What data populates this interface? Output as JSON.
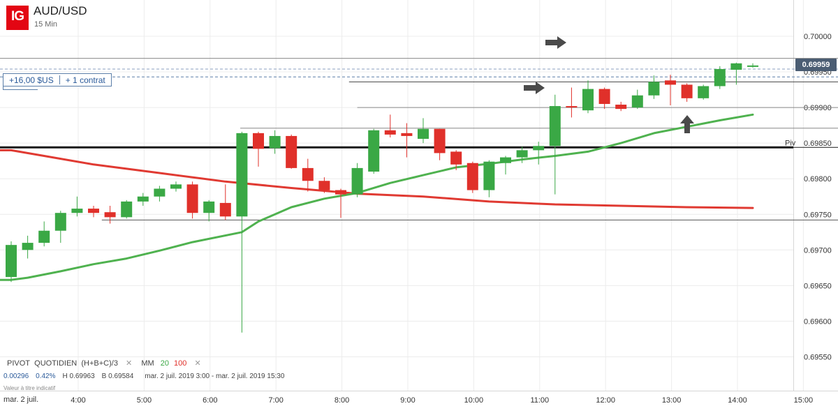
{
  "header": {
    "logo": "IG",
    "pair": "AUD/USD",
    "timeframe": "15 Min"
  },
  "position": {
    "pnl": "+16,00 $US",
    "size": "+ 1 contrat"
  },
  "current_price": "0.69959",
  "pivot_label": "Piv",
  "legend": {
    "pivot_name": "PIVOT",
    "pivot_period": "QUOTIDIEN",
    "pivot_formula": "(H+B+C)/3",
    "close_symbol": "✕",
    "ma_label": "MM",
    "ma_fast": "20",
    "ma_slow": "100"
  },
  "stats": {
    "change": "0.00296",
    "change_pct": "0.42%",
    "high": "H 0.69963",
    "low": "B 0.69584",
    "range": "mar. 2 juil. 2019 3:00 - mar. 2 juil. 2019 15:30"
  },
  "note": "Valeur à titre indicatif",
  "date_label": "mar. 2 juil.",
  "colors": {
    "up": "#3aa845",
    "down": "#e0302a",
    "ma_fast": "#4fb24f",
    "ma_slow": "#e03a32",
    "pivot": "#1a1a1a",
    "arrows": "#4a4a4a"
  },
  "icons": [
    "arrow-right-icon",
    "arrow-right-icon",
    "arrow-up-icon"
  ],
  "chart_data": {
    "type": "candlestick",
    "x_ticks": [
      "4:00",
      "5:00",
      "6:00",
      "7:00",
      "8:00",
      "9:00",
      "10:00",
      "11:00",
      "12:00",
      "13:00",
      "14:00",
      "15:00"
    ],
    "y_ticks": [
      "0.70000",
      "0.69950",
      "0.69900",
      "0.69850",
      "0.69800",
      "0.69750",
      "0.69700",
      "0.69650",
      "0.69600",
      "0.69550"
    ],
    "ylim": [
      0.69525,
      0.70025
    ],
    "time_start": "3:00",
    "interval_minutes": 15,
    "candles": [
      {
        "t": "3:00",
        "o": 0.69662,
        "h": 0.69712,
        "l": 0.69655,
        "c": 0.69707
      },
      {
        "t": "3:15",
        "o": 0.697,
        "h": 0.6972,
        "l": 0.69688,
        "c": 0.6971
      },
      {
        "t": "3:30",
        "o": 0.6971,
        "h": 0.6974,
        "l": 0.69705,
        "c": 0.69727
      },
      {
        "t": "3:45",
        "o": 0.69727,
        "h": 0.69755,
        "l": 0.6971,
        "c": 0.69752
      },
      {
        "t": "4:00",
        "o": 0.69752,
        "h": 0.69775,
        "l": 0.69747,
        "c": 0.69758
      },
      {
        "t": "4:15",
        "o": 0.69758,
        "h": 0.69762,
        "l": 0.69746,
        "c": 0.69752
      },
      {
        "t": "4:30",
        "o": 0.69753,
        "h": 0.69762,
        "l": 0.69737,
        "c": 0.69746
      },
      {
        "t": "4:45",
        "o": 0.69746,
        "h": 0.6977,
        "l": 0.69744,
        "c": 0.69768
      },
      {
        "t": "5:00",
        "o": 0.69768,
        "h": 0.6978,
        "l": 0.69762,
        "c": 0.69775
      },
      {
        "t": "5:15",
        "o": 0.69775,
        "h": 0.6979,
        "l": 0.69768,
        "c": 0.69786
      },
      {
        "t": "5:30",
        "o": 0.69786,
        "h": 0.69796,
        "l": 0.69782,
        "c": 0.69792
      },
      {
        "t": "5:45",
        "o": 0.69792,
        "h": 0.69796,
        "l": 0.69744,
        "c": 0.69752
      },
      {
        "t": "6:00",
        "o": 0.69752,
        "h": 0.6977,
        "l": 0.6974,
        "c": 0.69768
      },
      {
        "t": "6:15",
        "o": 0.69766,
        "h": 0.69792,
        "l": 0.69742,
        "c": 0.69747
      },
      {
        "t": "6:30",
        "o": 0.69747,
        "h": 0.69866,
        "l": 0.69584,
        "c": 0.69864
      },
      {
        "t": "6:45",
        "o": 0.69864,
        "h": 0.69866,
        "l": 0.69817,
        "c": 0.69842
      },
      {
        "t": "7:00",
        "o": 0.69843,
        "h": 0.69868,
        "l": 0.69835,
        "c": 0.6986
      },
      {
        "t": "7:15",
        "o": 0.6986,
        "h": 0.69862,
        "l": 0.69814,
        "c": 0.69815
      },
      {
        "t": "7:30",
        "o": 0.69815,
        "h": 0.69828,
        "l": 0.69782,
        "c": 0.69797
      },
      {
        "t": "7:45",
        "o": 0.69797,
        "h": 0.69802,
        "l": 0.6978,
        "c": 0.69784
      },
      {
        "t": "8:00",
        "o": 0.69784,
        "h": 0.69786,
        "l": 0.69745,
        "c": 0.69778
      },
      {
        "t": "8:15",
        "o": 0.69778,
        "h": 0.69822,
        "l": 0.69774,
        "c": 0.69815
      },
      {
        "t": "8:30",
        "o": 0.6981,
        "h": 0.6987,
        "l": 0.69807,
        "c": 0.69868
      },
      {
        "t": "8:45",
        "o": 0.69868,
        "h": 0.6989,
        "l": 0.69858,
        "c": 0.69862
      },
      {
        "t": "9:00",
        "o": 0.69864,
        "h": 0.69878,
        "l": 0.6983,
        "c": 0.6986
      },
      {
        "t": "9:15",
        "o": 0.69856,
        "h": 0.69885,
        "l": 0.6985,
        "c": 0.6987
      },
      {
        "t": "9:30",
        "o": 0.6987,
        "h": 0.6987,
        "l": 0.69826,
        "c": 0.69836
      },
      {
        "t": "9:45",
        "o": 0.69838,
        "h": 0.6984,
        "l": 0.69812,
        "c": 0.6982
      },
      {
        "t": "10:00",
        "o": 0.69822,
        "h": 0.69824,
        "l": 0.6978,
        "c": 0.69784
      },
      {
        "t": "10:15",
        "o": 0.69784,
        "h": 0.69826,
        "l": 0.69774,
        "c": 0.69824
      },
      {
        "t": "10:30",
        "o": 0.69822,
        "h": 0.69832,
        "l": 0.69806,
        "c": 0.6983
      },
      {
        "t": "10:45",
        "o": 0.6983,
        "h": 0.69845,
        "l": 0.69822,
        "c": 0.6984
      },
      {
        "t": "11:00",
        "o": 0.6984,
        "h": 0.69852,
        "l": 0.6982,
        "c": 0.69846
      },
      {
        "t": "11:15",
        "o": 0.69846,
        "h": 0.69918,
        "l": 0.69778,
        "c": 0.69902
      },
      {
        "t": "11:30",
        "o": 0.69902,
        "h": 0.69928,
        "l": 0.69886,
        "c": 0.699
      },
      {
        "t": "11:45",
        "o": 0.69896,
        "h": 0.69938,
        "l": 0.69892,
        "c": 0.69926
      },
      {
        "t": "12:00",
        "o": 0.69926,
        "h": 0.69928,
        "l": 0.69898,
        "c": 0.69905
      },
      {
        "t": "12:15",
        "o": 0.69904,
        "h": 0.69908,
        "l": 0.69895,
        "c": 0.69898
      },
      {
        "t": "12:30",
        "o": 0.699,
        "h": 0.69925,
        "l": 0.69898,
        "c": 0.69917
      },
      {
        "t": "12:45",
        "o": 0.69917,
        "h": 0.69945,
        "l": 0.69912,
        "c": 0.69936
      },
      {
        "t": "13:00",
        "o": 0.69938,
        "h": 0.69946,
        "l": 0.69903,
        "c": 0.69932
      },
      {
        "t": "13:15",
        "o": 0.69932,
        "h": 0.69934,
        "l": 0.69908,
        "c": 0.69913
      },
      {
        "t": "13:30",
        "o": 0.69913,
        "h": 0.69932,
        "l": 0.69911,
        "c": 0.6993
      },
      {
        "t": "13:45",
        "o": 0.6993,
        "h": 0.69958,
        "l": 0.69926,
        "c": 0.69954
      },
      {
        "t": "14:00",
        "o": 0.69953,
        "h": 0.69963,
        "l": 0.69932,
        "c": 0.69962
      },
      {
        "t": "14:15",
        "o": 0.69958,
        "h": 0.69962,
        "l": 0.69956,
        "c": 0.69959
      }
    ],
    "ma20": [
      [
        0,
        0.69658
      ],
      [
        1,
        0.69661
      ],
      [
        3,
        0.6967
      ],
      [
        5,
        0.6968
      ],
      [
        7,
        0.69688
      ],
      [
        9,
        0.69699
      ],
      [
        11,
        0.69711
      ],
      [
        14,
        0.69725
      ],
      [
        15,
        0.6974
      ],
      [
        17,
        0.6976
      ],
      [
        19,
        0.69772
      ],
      [
        21,
        0.6978
      ],
      [
        23,
        0.69794
      ],
      [
        25,
        0.69805
      ],
      [
        27,
        0.69816
      ],
      [
        29,
        0.69821
      ],
      [
        31,
        0.69827
      ],
      [
        33,
        0.69832
      ],
      [
        35,
        0.69838
      ],
      [
        37,
        0.6985
      ],
      [
        39,
        0.69864
      ],
      [
        41,
        0.69873
      ],
      [
        43,
        0.69882
      ],
      [
        45,
        0.6989
      ]
    ],
    "ma100": [
      [
        0,
        0.6984
      ],
      [
        2,
        0.69832
      ],
      [
        5,
        0.6982
      ],
      [
        9,
        0.69808
      ],
      [
        13,
        0.69796
      ],
      [
        17,
        0.69787
      ],
      [
        21,
        0.69779
      ],
      [
        25,
        0.69775
      ],
      [
        29,
        0.69768
      ],
      [
        33,
        0.69764
      ],
      [
        37,
        0.69762
      ],
      [
        41,
        0.6976
      ],
      [
        45,
        0.69759
      ]
    ],
    "pivot": 0.69844,
    "levels": [
      {
        "price": 0.69969,
        "from_candle": 0,
        "color": "#888888",
        "dash": false
      },
      {
        "price": 0.69954,
        "from_candle": 0,
        "color": "#8a9fbf",
        "dash": true
      },
      {
        "price": 0.69943,
        "from_candle": 0,
        "color": "#5b7ea8",
        "dash": true
      },
      {
        "price": 0.69936,
        "from_candle": 20.5,
        "color": "#444444",
        "dash": false
      },
      {
        "price": 0.699,
        "from_candle": 21,
        "color": "#888888",
        "dash": false
      },
      {
        "price": 0.69871,
        "from_candle": 13.9,
        "color": "#888888",
        "dash": false
      },
      {
        "price": 0.69742,
        "from_candle": 5.5,
        "color": "#555555",
        "dash": false
      }
    ]
  }
}
